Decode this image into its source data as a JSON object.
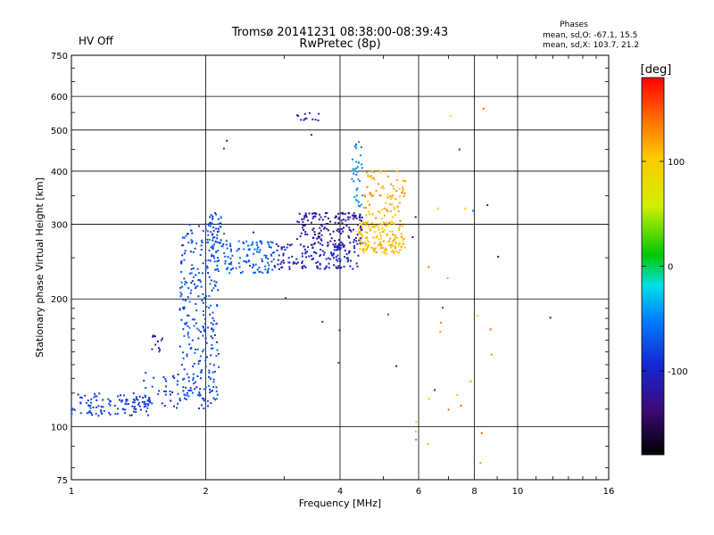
{
  "header": {
    "status": "HV Off",
    "status_color": "#cc0000",
    "title_line1": "Tromsø 20141231 08:38:00-08:39:43",
    "title_line2": "RwPretec (8p)",
    "stats_title": "Phases",
    "stats_line1": "mean, sd,O: -67.1, 15.5",
    "stats_line2": "mean, sd,X: 103.7, 21.2"
  },
  "colorbar": {
    "label": "[deg]",
    "min": -180,
    "max": 180,
    "ticks": [
      {
        "value": 100,
        "label": "100"
      },
      {
        "value": 0,
        "label": "0"
      },
      {
        "value": -100,
        "label": "-100"
      }
    ]
  },
  "chart_data": {
    "type": "scatter",
    "title": "Tromsø 20141231 08:38:00-08:39:43",
    "subtitle": "RwPretec (8p)",
    "xlabel": "Frequency [MHz]",
    "ylabel": "Stationary phase Virtual Height [km]",
    "xscale": "log",
    "yscale": "log",
    "xlim": [
      1,
      16
    ],
    "ylim": [
      75,
      750
    ],
    "xticks": [
      {
        "value": 1,
        "label": "1"
      },
      {
        "value": 2,
        "label": "2"
      },
      {
        "value": 4,
        "label": "4"
      },
      {
        "value": 6,
        "label": "6"
      },
      {
        "value": 8,
        "label": "8"
      },
      {
        "value": 10,
        "label": "10"
      },
      {
        "value": 16,
        "label": "16"
      }
    ],
    "yticks": [
      {
        "value": 75,
        "label": "75"
      },
      {
        "value": 100,
        "label": "100"
      },
      {
        "value": 200,
        "label": "200"
      },
      {
        "value": 300,
        "label": "300"
      },
      {
        "value": 400,
        "label": "400"
      },
      {
        "value": 500,
        "label": "500"
      },
      {
        "value": 600,
        "label": "600"
      },
      {
        "value": 750,
        "label": "750"
      }
    ],
    "grid": true,
    "color_variable": "phase [deg]",
    "clusters": [
      {
        "f": [
          1.0,
          1.5
        ],
        "h": [
          106,
          120
        ],
        "phase": [
          -95,
          -70
        ],
        "count": 110
      },
      {
        "f": [
          1.45,
          2.1
        ],
        "h": [
          110,
          135
        ],
        "phase": [
          -95,
          -70
        ],
        "count": 70
      },
      {
        "f": [
          1.5,
          1.6
        ],
        "h": [
          150,
          165
        ],
        "phase": [
          -110,
          -90
        ],
        "count": 12
      },
      {
        "f": [
          1.75,
          2.15
        ],
        "h": [
          115,
          300
        ],
        "phase": [
          -90,
          -60
        ],
        "count": 260
      },
      {
        "f": [
          2.0,
          2.2
        ],
        "h": [
          245,
          320
        ],
        "phase": [
          -95,
          -55
        ],
        "count": 60
      },
      {
        "f": [
          2.2,
          2.85
        ],
        "h": [
          230,
          275
        ],
        "phase": [
          -80,
          -55
        ],
        "count": 110
      },
      {
        "f": [
          2.85,
          4.4
        ],
        "h": [
          235,
          270
        ],
        "phase": [
          -120,
          -90
        ],
        "count": 150
      },
      {
        "f": [
          3.2,
          4.5
        ],
        "h": [
          265,
          320
        ],
        "phase": [
          -135,
          -105
        ],
        "count": 160
      },
      {
        "f": [
          4.25,
          4.5
        ],
        "h": [
          330,
          470
        ],
        "phase": [
          -60,
          -35
        ],
        "count": 35
      },
      {
        "f": [
          4.4,
          5.6
        ],
        "h": [
          255,
          305
        ],
        "phase": [
          85,
          125
        ],
        "count": 160
      },
      {
        "f": [
          4.5,
          5.6
        ],
        "h": [
          300,
          400
        ],
        "phase": [
          95,
          135
        ],
        "count": 90
      },
      {
        "f": [
          3.1,
          3.6
        ],
        "h": [
          525,
          550
        ],
        "phase": [
          -125,
          -100
        ],
        "count": 12
      },
      {
        "f": [
          5.8,
          9.0
        ],
        "h": [
          80,
          620
        ],
        "phase": [
          90,
          150
        ],
        "count": 22
      },
      {
        "f": [
          2.0,
          13.0
        ],
        "h": [
          90,
          600
        ],
        "phase": [
          -130,
          -60
        ],
        "count": 20
      }
    ]
  }
}
